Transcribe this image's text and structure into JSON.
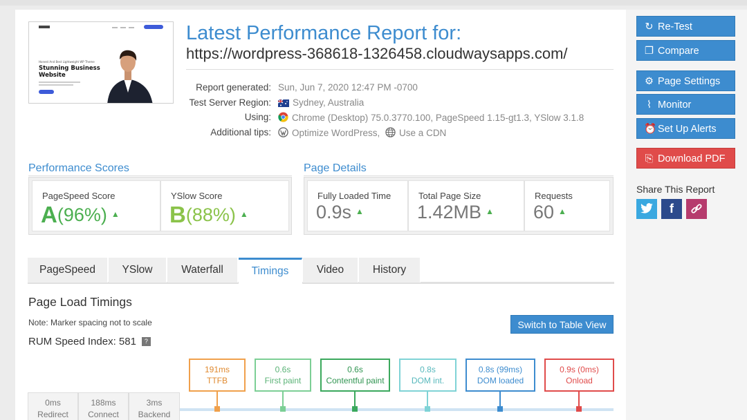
{
  "report": {
    "title": "Latest Performance Report for:",
    "url": "https://wordpress-368618-1326458.cloudwaysapps.com/",
    "thumbnail": {
      "headline": "Stunning Business Website",
      "tagline": "Honest And Best Lightweight WP Theme"
    },
    "meta": [
      {
        "label": "Report generated:",
        "value": "Sun, Jun 7, 2020 12:47 PM -0700",
        "icon": ""
      },
      {
        "label": "Test Server Region:",
        "value": "Sydney, Australia",
        "icon": "australia-flag-icon"
      },
      {
        "label": "Using:",
        "value": "Chrome (Desktop) 75.0.3770.100, PageSpeed 1.15-gt1.3, YSlow 3.1.8",
        "icon": "chrome-icon"
      },
      {
        "label": "Additional tips:",
        "value_a": "Optimize WordPress,",
        "value_b": "Use a CDN",
        "icon_a": "wordpress-icon",
        "icon_b": "globe-icon"
      }
    ]
  },
  "performance_scores": {
    "heading": "Performance Scores",
    "pagespeed": {
      "label": "PageSpeed Score",
      "grade": "A",
      "value": "(96%)"
    },
    "yslow": {
      "label": "YSlow Score",
      "grade": "B",
      "value": "(88%)"
    }
  },
  "page_details": {
    "heading": "Page Details",
    "fully_loaded": {
      "label": "Fully Loaded Time",
      "value": "0.9s"
    },
    "page_size": {
      "label": "Total Page Size",
      "value": "1.42MB"
    },
    "requests": {
      "label": "Requests",
      "value": "60"
    }
  },
  "tabs": [
    "PageSpeed",
    "YSlow",
    "Waterfall",
    "Timings",
    "Video",
    "History"
  ],
  "active_tab": "Timings",
  "timings": {
    "heading": "Page Load Timings",
    "note": "Note: Marker spacing not to scale",
    "rum_label": "RUM Speed Index: 581",
    "help": "?",
    "switch_button": "Switch to Table View",
    "markers": [
      {
        "value": "191ms",
        "label": "TTFB",
        "color": "#f0a04b"
      },
      {
        "value": "0.6s",
        "label": "First paint",
        "color": "#7ccf95"
      },
      {
        "value": "0.6s",
        "label": "Contentful paint",
        "color": "#3aa85c"
      },
      {
        "value": "0.8s",
        "label": "DOM int.",
        "color": "#7fd3d6"
      },
      {
        "value": "0.8s (99ms)",
        "label": "DOM loaded",
        "color": "#3d8ccf"
      },
      {
        "value": "0.9s (0ms)",
        "label": "Onload",
        "color": "#e04b4a"
      }
    ],
    "phases": [
      {
        "value": "0ms",
        "label": "Redirect"
      },
      {
        "value": "188ms",
        "label": "Connect"
      },
      {
        "value": "3ms",
        "label": "Backend"
      }
    ]
  },
  "sidebar": {
    "retest": "Re-Test",
    "compare": "Compare",
    "page_settings": "Page Settings",
    "monitor": "Monitor",
    "alerts": "Set Up Alerts",
    "download_pdf": "Download PDF",
    "share_label": "Share This Report"
  },
  "colors": {
    "accent": "#3d8ccf",
    "pdf_red": "#e04b4a",
    "grade_green": "#4caf50",
    "grade_lime": "#8bc34a"
  }
}
